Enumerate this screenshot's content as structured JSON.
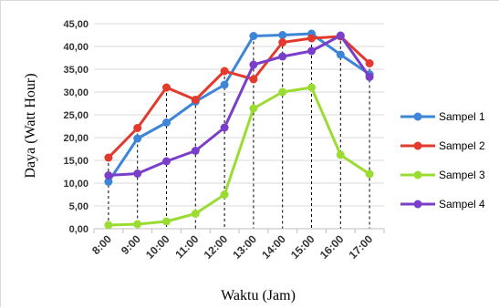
{
  "chart_data": {
    "type": "line",
    "title": "",
    "xlabel": "Waktu (Jam)",
    "ylabel": "Daya  (Watt Hour)",
    "categories": [
      "8:00",
      "9:00",
      "10:00",
      "11:00",
      "12:00",
      "13:00",
      "14:00",
      "15:00",
      "16:00",
      "17:00"
    ],
    "ylim": [
      0,
      45
    ],
    "yticks": [
      "0,00",
      "5,00",
      "10,00",
      "15,00",
      "20,00",
      "25,00",
      "30,00",
      "35,00",
      "40,00",
      "45,00"
    ],
    "grid": "horizontal",
    "drop_lines": true,
    "legend_position": "right",
    "series": [
      {
        "name": "Sampel 1",
        "color": "#3d85d6",
        "values": [
          10.3,
          19.8,
          23.3,
          27.9,
          31.6,
          42.3,
          42.5,
          42.8,
          38.2,
          33.9
        ]
      },
      {
        "name": "Sampel 2",
        "color": "#e23b2e",
        "values": [
          15.6,
          22.1,
          31.0,
          28.3,
          34.6,
          32.8,
          40.9,
          41.8,
          42.2,
          36.3
        ]
      },
      {
        "name": "Sampel 3",
        "color": "#9bdc33",
        "values": [
          0.8,
          1.0,
          1.6,
          3.3,
          7.5,
          26.4,
          30.0,
          31.0,
          16.2,
          12.0
        ]
      },
      {
        "name": "Sampel 4",
        "color": "#7a3fc8",
        "values": [
          11.7,
          12.1,
          14.8,
          17.1,
          22.2,
          36.0,
          37.8,
          39.0,
          42.4,
          33.3
        ]
      }
    ]
  }
}
